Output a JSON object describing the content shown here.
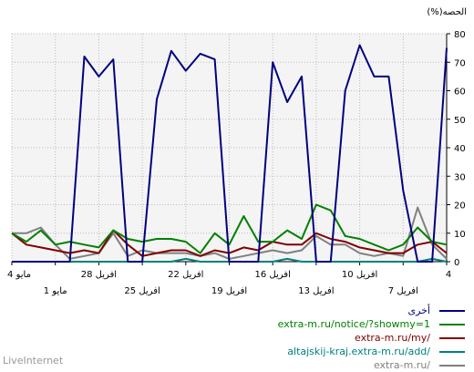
{
  "chart_data": {
    "type": "line",
    "ylabel": "(%)الحصه",
    "ylim": [
      0,
      80
    ],
    "y_ticks": [
      0,
      10,
      20,
      30,
      40,
      50,
      60,
      70,
      80
    ],
    "grid": true,
    "x_direction": "right-to-left",
    "x_ticks_upper": [
      "4",
      "10 افريل",
      "16 افريل",
      "22 افريل",
      "28 افريل",
      "4 مايو"
    ],
    "x_ticks_lower": [
      "7 افريل",
      "13 افريل",
      "19 افريل",
      "25 افريل",
      "1 مايو"
    ],
    "x": [
      "4 افريل",
      "5 افريل",
      "6 افريل",
      "7 افريل",
      "8 افريل",
      "9 افريل",
      "10 افريل",
      "11 افريل",
      "12 افريل",
      "13 افريل",
      "14 افريل",
      "15 افريل",
      "16 افريل",
      "17 افريل",
      "18 افريل",
      "19 افريل",
      "20 افريل",
      "21 افريل",
      "22 افريل",
      "23 افريل",
      "24 افريل",
      "25 افريل",
      "26 افريل",
      "27 افريل",
      "28 افريل",
      "29 افريل",
      "30 افريل",
      "1 مايو",
      "2 مايو",
      "3 مايو",
      "4 مايو"
    ],
    "series": [
      {
        "name": "أخرى",
        "color": "#000080",
        "values": [
          75,
          0,
          0,
          25,
          65,
          65,
          76,
          60,
          0,
          0,
          65,
          56,
          70,
          0,
          0,
          0,
          71,
          73,
          67,
          74,
          57,
          0,
          0,
          71,
          65,
          72,
          0,
          0,
          0,
          0,
          0
        ]
      },
      {
        "name": "extra-m.ru/notice/?showmy=1",
        "color": "#008000",
        "values": [
          6,
          7,
          12,
          6,
          4,
          6,
          8,
          9,
          18,
          20,
          8,
          11,
          7,
          7,
          16,
          6,
          10,
          3,
          7,
          8,
          8,
          7,
          8,
          11,
          5,
          6,
          7,
          6,
          11,
          7,
          10
        ]
      },
      {
        "name": "extra-m.ru/my/",
        "color": "#800000",
        "values": [
          3,
          7,
          6,
          3,
          3,
          4,
          5,
          7,
          8,
          10,
          6,
          6,
          7,
          4,
          5,
          3,
          4,
          2,
          4,
          4,
          3,
          2,
          6,
          11,
          3,
          4,
          3,
          4,
          5,
          6,
          10
        ]
      },
      {
        "name": "altajskij-kraj.extra-m.ru/add/",
        "color": "#008080",
        "values": [
          0,
          1,
          0,
          0,
          0,
          0,
          0,
          0,
          0,
          0,
          0,
          1,
          0,
          0,
          0,
          0,
          0,
          0,
          1,
          0,
          0,
          0,
          0,
          0,
          0,
          0,
          0,
          0,
          0,
          0,
          0
        ]
      },
      {
        "name": "extra-m.ru/",
        "color": "#808080",
        "values": [
          1,
          6,
          19,
          2,
          3,
          2,
          3,
          6,
          6,
          9,
          4,
          3,
          4,
          3,
          2,
          1,
          3,
          2,
          3,
          3,
          3,
          4,
          2,
          10,
          3,
          2,
          1,
          6,
          12,
          10,
          10
        ]
      }
    ]
  },
  "footer": "LiveInternet"
}
